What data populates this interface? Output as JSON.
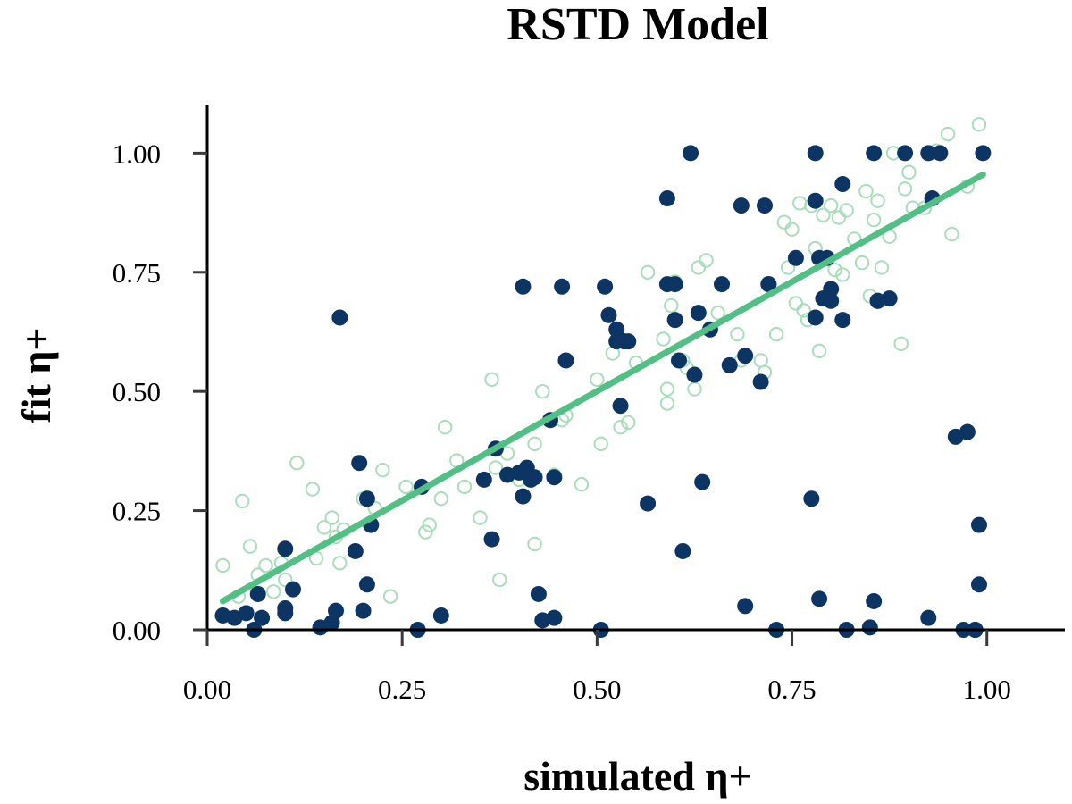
{
  "chart_data": {
    "type": "scatter",
    "title": "RSTD Model",
    "xlabel": "simulated η+",
    "ylabel": "fit η+",
    "xlim": [
      0,
      1.1
    ],
    "ylim": [
      0,
      1.1
    ],
    "xticks": [
      "0.00",
      "0.25",
      "0.50",
      "0.75",
      "1.00"
    ],
    "yticks": [
      "0.00",
      "0.25",
      "0.50",
      "0.75",
      "1.00"
    ],
    "xtick_values": [
      0,
      0.25,
      0.5,
      0.75,
      1.0
    ],
    "ytick_values": [
      0,
      0.25,
      0.5,
      0.75,
      1.0
    ],
    "grid": false,
    "colors": {
      "filled": "#0d3563",
      "hollow": "#a8ddb9",
      "fit_line": "#52c085"
    },
    "fit_line": {
      "x": [
        0.02,
        0.995
      ],
      "y": [
        0.06,
        0.955
      ]
    },
    "series": [
      {
        "name": "hollow",
        "style": "open-circle",
        "x": [
          0.02,
          0.04,
          0.045,
          0.055,
          0.065,
          0.075,
          0.085,
          0.095,
          0.1,
          0.115,
          0.135,
          0.14,
          0.15,
          0.16,
          0.165,
          0.17,
          0.175,
          0.2,
          0.215,
          0.225,
          0.235,
          0.255,
          0.28,
          0.285,
          0.3,
          0.305,
          0.32,
          0.33,
          0.35,
          0.365,
          0.37,
          0.375,
          0.385,
          0.4,
          0.42,
          0.42,
          0.43,
          0.445,
          0.455,
          0.46,
          0.48,
          0.5,
          0.505,
          0.52,
          0.53,
          0.54,
          0.55,
          0.565,
          0.585,
          0.59,
          0.59,
          0.595,
          0.6,
          0.61,
          0.615,
          0.625,
          0.63,
          0.64,
          0.655,
          0.68,
          0.685,
          0.71,
          0.715,
          0.73,
          0.74,
          0.745,
          0.75,
          0.755,
          0.76,
          0.765,
          0.77,
          0.775,
          0.78,
          0.785,
          0.79,
          0.8,
          0.805,
          0.81,
          0.815,
          0.82,
          0.83,
          0.84,
          0.845,
          0.85,
          0.855,
          0.86,
          0.865,
          0.875,
          0.88,
          0.89,
          0.895,
          0.9,
          0.905,
          0.92,
          0.935,
          0.95,
          0.955,
          0.975,
          0.99
        ],
        "y": [
          0.135,
          0.07,
          0.27,
          0.175,
          0.115,
          0.135,
          0.08,
          0.14,
          0.105,
          0.35,
          0.295,
          0.15,
          0.215,
          0.235,
          0.195,
          0.14,
          0.21,
          0.275,
          0.255,
          0.335,
          0.07,
          0.3,
          0.205,
          0.22,
          0.275,
          0.425,
          0.355,
          0.3,
          0.235,
          0.525,
          0.34,
          0.105,
          0.37,
          0.315,
          0.39,
          0.18,
          0.5,
          0.325,
          0.44,
          0.45,
          0.305,
          0.525,
          0.39,
          0.58,
          0.425,
          0.435,
          0.56,
          0.75,
          0.61,
          0.505,
          0.475,
          0.68,
          0.73,
          0.565,
          0.55,
          0.505,
          0.76,
          0.775,
          0.665,
          0.62,
          0.565,
          0.565,
          0.54,
          0.62,
          0.855,
          0.76,
          0.84,
          0.685,
          0.895,
          0.67,
          0.65,
          0.89,
          0.8,
          0.585,
          0.87,
          0.89,
          0.755,
          0.865,
          0.745,
          0.88,
          0.82,
          0.77,
          0.92,
          0.7,
          0.86,
          0.9,
          0.76,
          0.825,
          1.0,
          0.6,
          0.925,
          0.96,
          0.885,
          0.885,
          1.005,
          1.04,
          0.83,
          0.93,
          1.06
        ]
      },
      {
        "name": "filled",
        "style": "filled-circle",
        "x": [
          0.02,
          0.035,
          0.05,
          0.06,
          0.065,
          0.07,
          0.1,
          0.1,
          0.1,
          0.11,
          0.145,
          0.16,
          0.165,
          0.17,
          0.19,
          0.195,
          0.2,
          0.205,
          0.205,
          0.21,
          0.27,
          0.275,
          0.3,
          0.355,
          0.365,
          0.37,
          0.385,
          0.4,
          0.405,
          0.405,
          0.41,
          0.415,
          0.42,
          0.425,
          0.43,
          0.44,
          0.445,
          0.445,
          0.455,
          0.46,
          0.505,
          0.51,
          0.515,
          0.525,
          0.525,
          0.53,
          0.535,
          0.54,
          0.565,
          0.59,
          0.59,
          0.6,
          0.6,
          0.605,
          0.61,
          0.62,
          0.625,
          0.63,
          0.635,
          0.645,
          0.66,
          0.67,
          0.685,
          0.69,
          0.69,
          0.71,
          0.715,
          0.72,
          0.72,
          0.73,
          0.755,
          0.775,
          0.78,
          0.78,
          0.78,
          0.785,
          0.785,
          0.79,
          0.795,
          0.8,
          0.8,
          0.815,
          0.815,
          0.82,
          0.85,
          0.855,
          0.855,
          0.86,
          0.86,
          0.875,
          0.895,
          0.925,
          0.925,
          0.93,
          0.94,
          0.96,
          0.97,
          0.975,
          0.985,
          0.985,
          0.99,
          0.99,
          0.995
        ],
        "y": [
          0.03,
          0.025,
          0.035,
          0.0,
          0.075,
          0.025,
          0.17,
          0.045,
          0.035,
          0.085,
          0.005,
          0.015,
          0.04,
          0.655,
          0.165,
          0.35,
          0.04,
          0.275,
          0.095,
          0.22,
          0.0,
          0.3,
          0.03,
          0.315,
          0.19,
          0.38,
          0.325,
          0.33,
          0.72,
          0.28,
          0.34,
          0.315,
          0.32,
          0.075,
          0.02,
          0.44,
          0.025,
          0.32,
          0.72,
          0.565,
          0.0,
          0.72,
          0.66,
          0.63,
          0.605,
          0.47,
          0.605,
          0.605,
          0.265,
          0.905,
          0.725,
          0.65,
          0.725,
          0.565,
          0.165,
          1.0,
          0.535,
          0.665,
          0.31,
          0.63,
          0.725,
          0.555,
          0.89,
          0.575,
          0.05,
          0.52,
          0.89,
          0.725,
          0.725,
          0.0,
          0.78,
          0.275,
          1.0,
          0.9,
          0.655,
          0.065,
          0.78,
          0.695,
          0.78,
          0.69,
          0.715,
          0.935,
          0.65,
          0.0,
          0.005,
          1.0,
          0.06,
          0.69,
          0.69,
          0.695,
          1.0,
          1.0,
          0.025,
          0.905,
          1.0,
          0.405,
          0.0,
          0.415,
          0.0,
          0.0,
          0.22,
          0.095,
          1.0
        ]
      }
    ]
  }
}
